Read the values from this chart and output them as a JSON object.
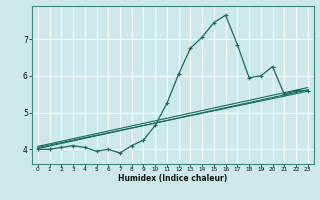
{
  "xlabel": "Humidex (Indice chaleur)",
  "ylabel": "",
  "background_color": "#cce8e8",
  "grid_color": "#b0d8d8",
  "line_color": "#1a6b5a",
  "xlim": [
    -0.5,
    23.5
  ],
  "ylim": [
    3.6,
    7.9
  ],
  "yticks": [
    4,
    5,
    6,
    7
  ],
  "xticks": [
    0,
    1,
    2,
    3,
    4,
    5,
    6,
    7,
    8,
    9,
    10,
    11,
    12,
    13,
    14,
    15,
    16,
    17,
    18,
    19,
    20,
    21,
    22,
    23
  ],
  "curve1_x": [
    0,
    1,
    2,
    3,
    4,
    5,
    6,
    7,
    8,
    9,
    10,
    11,
    12,
    13,
    14,
    15,
    16,
    17,
    18,
    19,
    20,
    21,
    22,
    23
  ],
  "curve1_y": [
    4.0,
    4.0,
    4.05,
    4.1,
    4.05,
    3.95,
    4.0,
    3.9,
    4.1,
    4.25,
    4.65,
    5.25,
    6.05,
    6.75,
    7.05,
    7.45,
    7.65,
    6.85,
    5.95,
    6.0,
    6.25,
    5.5,
    5.6,
    5.6
  ],
  "line1_x": [
    0,
    23
  ],
  "line1_y": [
    4.02,
    5.62
  ],
  "line2_x": [
    0,
    23
  ],
  "line2_y": [
    4.05,
    5.58
  ],
  "line3_x": [
    0,
    23
  ],
  "line3_y": [
    4.08,
    5.68
  ]
}
